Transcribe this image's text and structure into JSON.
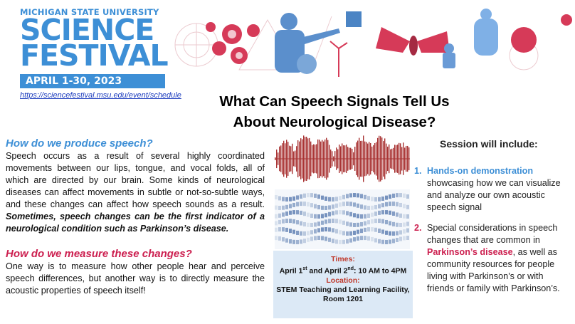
{
  "header": {
    "university": "MICHIGAN STATE UNIVERSITY",
    "line1": "SCIENCE",
    "line2": "FESTIVAL",
    "dates": "APRIL 1-30, 2023",
    "url": "https://sciencefestival.msu.edu/event/schedule"
  },
  "title": {
    "line1": "What Can Speech Signals Tell Us",
    "line2": "About Neurological Disease?"
  },
  "left": {
    "heading1": "How do we produce speech?",
    "para1": "Speech occurs as a result of several highly coordinated movements between our lips, tongue, and vocal folds, all of which are directed by our brain. Some kinds of neurological diseases can affect movements in subtle or not-so-subtle ways, and these changes can affect how speech sounds as a result.",
    "para1_emph": "Sometimes, speech changes can be the first indicator of a neurological condition such as Parkinson’s disease.",
    "heading2": "How do we measure these changes?",
    "para2": "One way is to measure how other people hear and perceive speech differences, but another way is to directly measure the acoustic properties of speech itself!"
  },
  "info": {
    "times_label": "Times:",
    "times_a": "April 1",
    "times_sup1": "st",
    "times_b": " and April 2",
    "times_sup2": "nd",
    "times_c": ": 10 AM to 4PM",
    "location_label": "Location:",
    "location_line1": "STEM Teaching and Learning Facility,",
    "location_line2": "Room 1201"
  },
  "session": {
    "heading": "Session will include:",
    "item1_num": "1.",
    "item1_bold": "Hands-on demonstration",
    "item1_text": "showcasing how we can visualize and analyze our own acoustic speech signal",
    "item2_num": "2.",
    "item2_text_a": "Special considerations in speech changes that are common in",
    "item2_bold": "Parkinson’s disease",
    "item2_text_b": ", as well as community resources for people living with Parkinson’s or with friends or family with Parkinson’s."
  },
  "colors": {
    "brand_blue": "#3d8fd6",
    "accent_red": "#cc1f4f",
    "info_bg": "#dce9f6",
    "waveform": "#a83232",
    "spectrogram": "#4a6fa8"
  }
}
